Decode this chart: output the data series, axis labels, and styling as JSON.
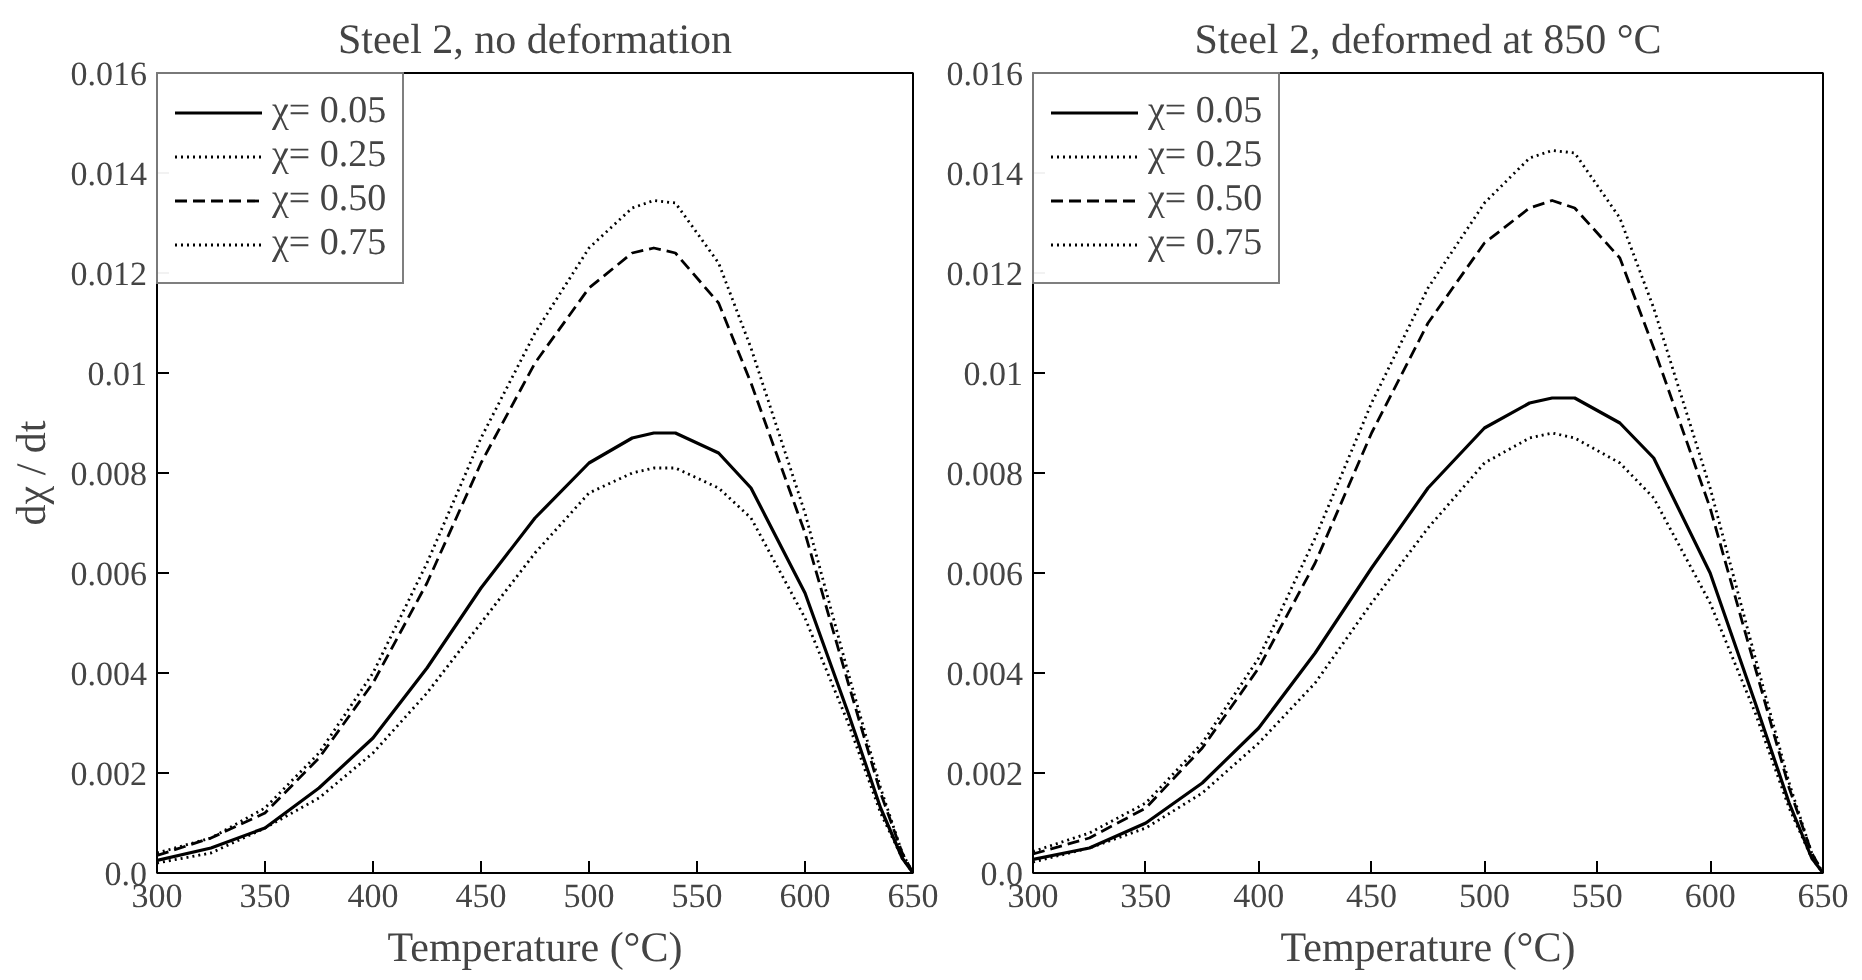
{
  "chart_data": [
    {
      "type": "line",
      "title": "Steel 2, no deformation",
      "xlabel": "Temperature (°C)",
      "ylabel": "dχ / dt",
      "xlim": [
        300,
        650
      ],
      "xticks": [
        300,
        350,
        400,
        450,
        500,
        550,
        600,
        650
      ],
      "ylim": [
        0,
        0.016
      ],
      "yticks": [
        {
          "value": 0,
          "label": "0.0"
        },
        0.002,
        0.004,
        0.006,
        0.008,
        0.01,
        0.012,
        0.014,
        0.016
      ],
      "legend": "top left",
      "grid": false,
      "marker": "none",
      "x": [
        300,
        325,
        350,
        375,
        400,
        425,
        450,
        475,
        500,
        520,
        530,
        540,
        560,
        575,
        600,
        620,
        635,
        645,
        650
      ],
      "series": [
        {
          "name": "χ= 0.05",
          "color": "#000000",
          "line_style": "solid",
          "values": [
            0.00025,
            0.0005,
            0.0009,
            0.0017,
            0.0027,
            0.0041,
            0.0057,
            0.0071,
            0.0082,
            0.0087,
            0.0088,
            0.0088,
            0.0084,
            0.0077,
            0.0056,
            0.0032,
            0.0013,
            0.0003,
            0
          ]
        },
        {
          "name": "χ= 0.25",
          "color": "#000000",
          "line_style": "dotted",
          "values": [
            0.0004,
            0.0007,
            0.0013,
            0.0024,
            0.004,
            0.0062,
            0.0087,
            0.0108,
            0.0125,
            0.0133,
            0.01345,
            0.0134,
            0.0122,
            0.0105,
            0.0072,
            0.004,
            0.0017,
            0.0004,
            0
          ]
        },
        {
          "name": "χ= 0.50",
          "color": "#000000",
          "line_style": "dashed",
          "values": [
            0.00035,
            0.0007,
            0.0012,
            0.0023,
            0.0038,
            0.0058,
            0.0082,
            0.0102,
            0.0117,
            0.0124,
            0.0125,
            0.0124,
            0.0114,
            0.0098,
            0.0068,
            0.0038,
            0.0016,
            0.0004,
            0
          ]
        },
        {
          "name": "χ= 0.75",
          "color": "#000000",
          "line_style": "dotted",
          "values": [
            0.0002,
            0.0004,
            0.0009,
            0.0015,
            0.0024,
            0.0036,
            0.005,
            0.0064,
            0.0076,
            0.008,
            0.0081,
            0.0081,
            0.0077,
            0.0071,
            0.0051,
            0.003,
            0.0012,
            0.0003,
            0
          ]
        }
      ]
    },
    {
      "type": "line",
      "title": "Steel 2, deformed at 850 °C",
      "xlabel": "Temperature (°C)",
      "xlim": [
        300,
        650
      ],
      "xticks": [
        300,
        350,
        400,
        450,
        500,
        550,
        600,
        650
      ],
      "ylim": [
        0,
        0.016
      ],
      "yticks": [
        {
          "value": 0,
          "label": "0.0"
        },
        0.002,
        0.004,
        0.006,
        0.008,
        0.01,
        0.012,
        0.014,
        0.016
      ],
      "legend": "top left",
      "grid": false,
      "marker": "none",
      "x": [
        300,
        325,
        350,
        375,
        400,
        425,
        450,
        475,
        500,
        520,
        530,
        540,
        560,
        575,
        600,
        620,
        635,
        645,
        650
      ],
      "series": [
        {
          "name": "χ= 0.05",
          "color": "#000000",
          "line_style": "solid",
          "values": [
            0.00027,
            0.0005,
            0.001,
            0.0018,
            0.0029,
            0.0044,
            0.0061,
            0.0077,
            0.0089,
            0.0094,
            0.0095,
            0.0095,
            0.009,
            0.0083,
            0.006,
            0.0034,
            0.0014,
            0.0003,
            0
          ]
        },
        {
          "name": "χ= 0.25",
          "color": "#000000",
          "line_style": "dotted",
          "values": [
            0.00043,
            0.0008,
            0.0014,
            0.0026,
            0.0043,
            0.0067,
            0.0094,
            0.0117,
            0.0134,
            0.0143,
            0.01445,
            0.0144,
            0.0131,
            0.0113,
            0.0077,
            0.0043,
            0.0018,
            0.0004,
            0
          ]
        },
        {
          "name": "χ= 0.50",
          "color": "#000000",
          "line_style": "dashed",
          "values": [
            0.00038,
            0.0007,
            0.0013,
            0.0025,
            0.0041,
            0.0062,
            0.0088,
            0.011,
            0.0126,
            0.0133,
            0.01345,
            0.0133,
            0.0123,
            0.0105,
            0.0073,
            0.0041,
            0.0017,
            0.0004,
            0
          ]
        },
        {
          "name": "χ= 0.75",
          "color": "#000000",
          "line_style": "dotted",
          "values": [
            0.00022,
            0.0005,
            0.0009,
            0.0016,
            0.0026,
            0.0038,
            0.0054,
            0.0069,
            0.0082,
            0.0087,
            0.0088,
            0.0087,
            0.0082,
            0.0075,
            0.0054,
            0.0032,
            0.0013,
            0.0003,
            0
          ]
        }
      ]
    }
  ]
}
